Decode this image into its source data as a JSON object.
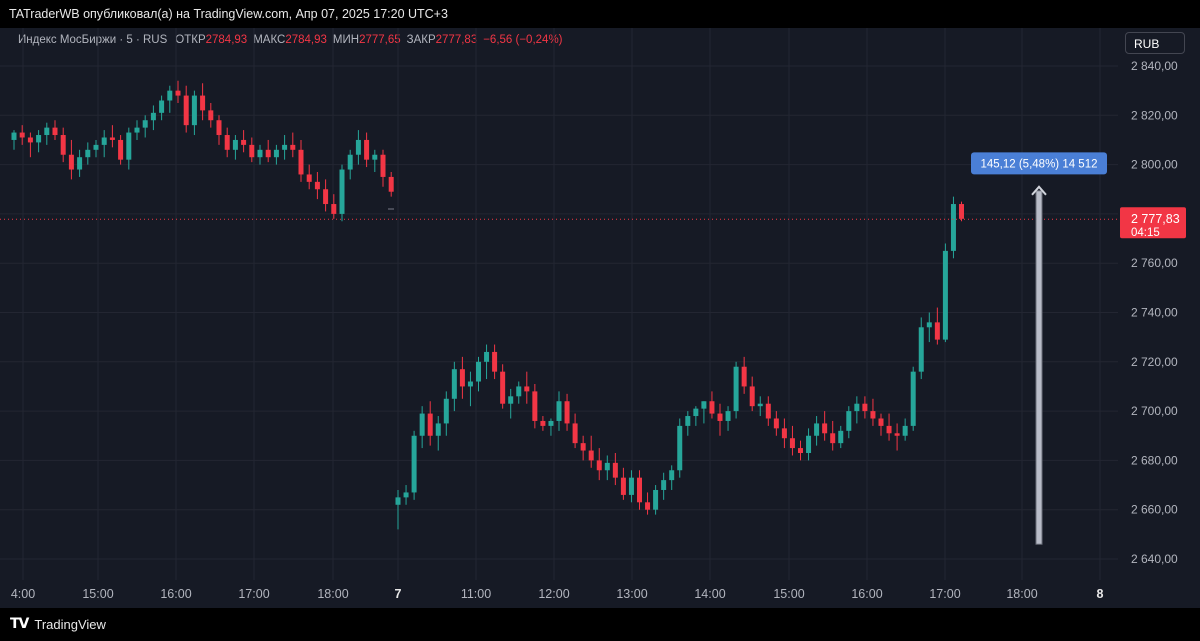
{
  "header": {
    "title": "TATraderWB опубликовал(а) на TradingView.com, Апр 07, 2025 17:20 UTC+3"
  },
  "legend": {
    "symbol": "Индекс МосБиржи · 5 · RUS",
    "open_label": "ОТКР",
    "open_value": "2784,93",
    "high_label": "МАКС",
    "high_value": "2784,93",
    "low_label": "МИН",
    "low_value": "2777,65",
    "close_label": "ЗАКР",
    "close_value": "2777,83",
    "change": "−6,56 (−0,24%)"
  },
  "currency_button": "RUB",
  "footer": {
    "logo": "TV",
    "brand": "TradingView"
  },
  "colors": {
    "up": "#26a69a",
    "down": "#f23645",
    "background": "#161a25",
    "measure": "#4a7fd6"
  },
  "chart_data": {
    "type": "candlestick",
    "ylim": [
      2630,
      2850
    ],
    "y_ticks": [
      "2 640,00",
      "2 660,00",
      "2 680,00",
      "2 700,00",
      "2 720,00",
      "2 740,00",
      "2 760,00",
      "2 780,00",
      "2 800,00",
      "2 820,00",
      "2 840,00"
    ],
    "x_ticks": [
      "4:00",
      "15:00",
      "16:00",
      "17:00",
      "18:00",
      "7",
      "11:00",
      "12:00",
      "13:00",
      "14:00",
      "15:00",
      "16:00",
      "17:00",
      "18:00",
      "8"
    ],
    "last_price_label": "2 777,83",
    "countdown_label": "04:15",
    "measure_label": "145,12 (5,48%) 14 512",
    "measure_range": [
      2646,
      2791
    ],
    "session1": [
      [
        2810,
        2814,
        2806,
        2813
      ],
      [
        2813,
        2816,
        2808,
        2811
      ],
      [
        2811,
        2813,
        2803,
        2809
      ],
      [
        2809,
        2814,
        2805,
        2812
      ],
      [
        2812,
        2817,
        2808,
        2815
      ],
      [
        2815,
        2818,
        2810,
        2812
      ],
      [
        2812,
        2815,
        2801,
        2804
      ],
      [
        2804,
        2810,
        2794,
        2798
      ],
      [
        2798,
        2806,
        2795,
        2803
      ],
      [
        2803,
        2809,
        2800,
        2806
      ],
      [
        2806,
        2810,
        2803,
        2808
      ],
      [
        2808,
        2814,
        2803,
        2811
      ],
      [
        2811,
        2816,
        2807,
        2810
      ],
      [
        2810,
        2812,
        2800,
        2802
      ],
      [
        2802,
        2815,
        2798,
        2813
      ],
      [
        2813,
        2818,
        2810,
        2815
      ],
      [
        2815,
        2820,
        2811,
        2818
      ],
      [
        2818,
        2824,
        2814,
        2821
      ],
      [
        2821,
        2828,
        2818,
        2826
      ],
      [
        2826,
        2832,
        2821,
        2830
      ],
      [
        2830,
        2834,
        2825,
        2828
      ],
      [
        2828,
        2832,
        2813,
        2816
      ],
      [
        2816,
        2830,
        2812,
        2828
      ],
      [
        2828,
        2833,
        2818,
        2822
      ],
      [
        2822,
        2825,
        2815,
        2818
      ],
      [
        2818,
        2820,
        2808,
        2812
      ],
      [
        2812,
        2815,
        2803,
        2806
      ],
      [
        2806,
        2812,
        2802,
        2810
      ],
      [
        2810,
        2814,
        2805,
        2808
      ],
      [
        2808,
        2811,
        2801,
        2803
      ],
      [
        2803,
        2808,
        2800,
        2806
      ],
      [
        2806,
        2810,
        2801,
        2803
      ],
      [
        2803,
        2808,
        2800,
        2806
      ],
      [
        2806,
        2812,
        2802,
        2808
      ],
      [
        2808,
        2813,
        2803,
        2806
      ],
      [
        2806,
        2810,
        2793,
        2796
      ],
      [
        2796,
        2800,
        2790,
        2793
      ],
      [
        2793,
        2797,
        2786,
        2790
      ],
      [
        2790,
        2794,
        2781,
        2784
      ],
      [
        2784,
        2788,
        2778,
        2780
      ],
      [
        2780,
        2800,
        2777,
        2798
      ],
      [
        2798,
        2806,
        2794,
        2804
      ],
      [
        2804,
        2814,
        2800,
        2810
      ],
      [
        2810,
        2813,
        2799,
        2802
      ],
      [
        2802,
        2806,
        2797,
        2804
      ],
      [
        2804,
        2806,
        2791,
        2795
      ],
      [
        2795,
        2797,
        2787,
        2789
      ]
    ],
    "session2": [
      [
        2662,
        2668,
        2652,
        2665
      ],
      [
        2665,
        2670,
        2662,
        2667
      ],
      [
        2667,
        2692,
        2664,
        2690
      ],
      [
        2690,
        2702,
        2685,
        2699
      ],
      [
        2699,
        2704,
        2686,
        2690
      ],
      [
        2690,
        2698,
        2684,
        2695
      ],
      [
        2695,
        2708,
        2690,
        2705
      ],
      [
        2705,
        2720,
        2700,
        2717
      ],
      [
        2717,
        2722,
        2705,
        2710
      ],
      [
        2710,
        2716,
        2702,
        2712
      ],
      [
        2712,
        2722,
        2708,
        2720
      ],
      [
        2720,
        2727,
        2713,
        2724
      ],
      [
        2724,
        2727,
        2713,
        2716
      ],
      [
        2716,
        2719,
        2701,
        2703
      ],
      [
        2703,
        2709,
        2697,
        2706
      ],
      [
        2706,
        2712,
        2703,
        2710
      ],
      [
        2710,
        2716,
        2703,
        2708
      ],
      [
        2708,
        2711,
        2693,
        2696
      ],
      [
        2696,
        2698,
        2692,
        2694
      ],
      [
        2694,
        2697,
        2690,
        2696
      ],
      [
        2696,
        2708,
        2692,
        2704
      ],
      [
        2704,
        2707,
        2692,
        2695
      ],
      [
        2695,
        2699,
        2685,
        2687
      ],
      [
        2687,
        2690,
        2680,
        2684
      ],
      [
        2684,
        2690,
        2677,
        2680
      ],
      [
        2680,
        2685,
        2672,
        2676
      ],
      [
        2676,
        2682,
        2672,
        2679
      ],
      [
        2679,
        2683,
        2670,
        2673
      ],
      [
        2673,
        2677,
        2664,
        2666
      ],
      [
        2666,
        2676,
        2663,
        2673
      ],
      [
        2673,
        2676,
        2660,
        2663
      ],
      [
        2663,
        2667,
        2658,
        2660
      ],
      [
        2660,
        2670,
        2658,
        2668
      ],
      [
        2668,
        2675,
        2664,
        2672
      ],
      [
        2672,
        2678,
        2668,
        2676
      ],
      [
        2676,
        2697,
        2673,
        2694
      ],
      [
        2694,
        2700,
        2690,
        2698
      ],
      [
        2698,
        2702,
        2694,
        2701
      ],
      [
        2701,
        2704,
        2695,
        2704
      ],
      [
        2704,
        2708,
        2697,
        2699
      ],
      [
        2699,
        2703,
        2690,
        2696
      ],
      [
        2696,
        2702,
        2692,
        2700
      ],
      [
        2700,
        2720,
        2697,
        2718
      ],
      [
        2718,
        2722,
        2707,
        2710
      ],
      [
        2710,
        2714,
        2700,
        2702
      ],
      [
        2702,
        2706,
        2698,
        2703
      ],
      [
        2703,
        2706,
        2694,
        2697
      ],
      [
        2697,
        2700,
        2690,
        2693
      ],
      [
        2693,
        2697,
        2685,
        2689
      ],
      [
        2689,
        2694,
        2682,
        2685
      ],
      [
        2685,
        2688,
        2680,
        2683
      ],
      [
        2683,
        2693,
        2680,
        2690
      ],
      [
        2690,
        2698,
        2686,
        2695
      ],
      [
        2695,
        2700,
        2688,
        2691
      ],
      [
        2691,
        2696,
        2684,
        2687
      ],
      [
        2687,
        2694,
        2685,
        2692
      ],
      [
        2692,
        2702,
        2689,
        2700
      ],
      [
        2700,
        2706,
        2695,
        2703
      ],
      [
        2703,
        2706,
        2697,
        2700
      ],
      [
        2700,
        2705,
        2694,
        2697
      ],
      [
        2697,
        2699,
        2690,
        2694
      ],
      [
        2694,
        2699,
        2688,
        2691
      ],
      [
        2691,
        2695,
        2684,
        2690
      ],
      [
        2690,
        2697,
        2688,
        2694
      ],
      [
        2694,
        2718,
        2692,
        2716
      ],
      [
        2716,
        2738,
        2713,
        2734
      ],
      [
        2734,
        2740,
        2728,
        2736
      ],
      [
        2736,
        2742,
        2727,
        2729
      ],
      [
        2729,
        2768,
        2728,
        2765
      ],
      [
        2765,
        2787,
        2762,
        2784
      ],
      [
        2784,
        2785,
        2777,
        2778
      ]
    ]
  }
}
